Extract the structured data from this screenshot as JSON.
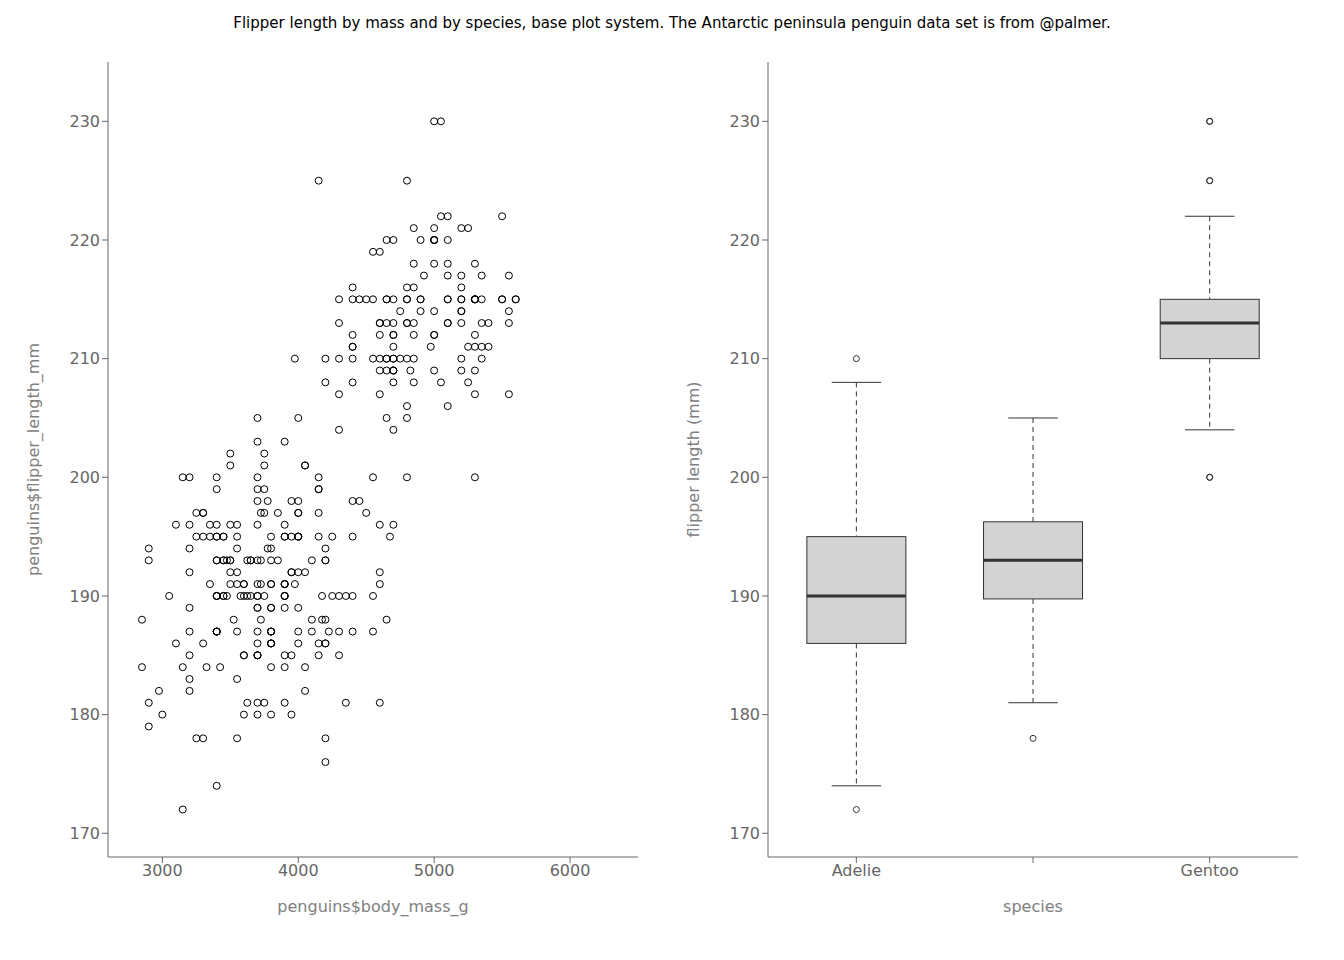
{
  "title": "Flipper length by mass and by species, base plot system. The Antarctic peninsula penguin data set is from @palmer.",
  "chart_data": [
    {
      "type": "scatter",
      "xlabel": "penguins$body_mass_g",
      "ylabel": "penguins$flipper_length_mm",
      "xlim": [
        2600,
        6500
      ],
      "ylim": [
        168,
        235
      ],
      "xticks": [
        3000,
        4000,
        5000,
        6000
      ],
      "yticks": [
        170,
        180,
        190,
        200,
        210,
        220,
        230
      ],
      "color": "#000000",
      "marker": "circle",
      "x": [
        3750,
        3800,
        3250,
        3450,
        3650,
        3625,
        4675,
        3475,
        4250,
        3300,
        3700,
        3200,
        3800,
        4400,
        3700,
        3450,
        4500,
        3325,
        4200,
        3400,
        3600,
        3800,
        3950,
        3800,
        3800,
        3550,
        3200,
        3150,
        3950,
        3550,
        3300,
        4650,
        3150,
        3900,
        3100,
        4400,
        3000,
        4600,
        3425,
        2975,
        3450,
        4150,
        3500,
        4300,
        3450,
        4050,
        2900,
        3700,
        3550,
        3800,
        2850,
        3750,
        3150,
        4400,
        3600,
        3100,
        4100,
        3900,
        3800,
        4150,
        3300,
        3900,
        4050,
        2850,
        3950,
        3350,
        4100,
        3050,
        4450,
        3600,
        3900,
        3550,
        4150,
        3700,
        4250,
        3700,
        3900,
        3550,
        4000,
        3200,
        4700,
        3800,
        4200,
        3350,
        3550,
        3400,
        3800,
        3700,
        4550,
        3500,
        4000,
        3700,
        4000,
        3400,
        4200,
        3400,
        3400,
        4200,
        3200,
        4600,
        3900,
        3200,
        4300,
        3500,
        3800,
        3700,
        4350,
        2900,
        4000,
        3775,
        3900,
        3725,
        3250,
        3725,
        3200,
        3725,
        4150,
        4000,
        3900,
        4100,
        4000,
        4200,
        3750,
        3700,
        3750,
        3900,
        3950,
        3900,
        3975,
        3900,
        3850,
        3650,
        4150,
        4225,
        4175,
        3975,
        3700,
        3600,
        3450,
        3625,
        3700,
        4175,
        3475,
        3950,
        3600,
        3625,
        4050,
        3550,
        3850,
        3400,
        3750,
        3500,
        3900,
        3650,
        3525,
        3725,
        3950,
        3250,
        3750,
        4150,
        3700,
        3800,
        3775,
        3700,
        4050,
        3575,
        4050,
        3300,
        3700,
        3450,
        4400,
        3600,
        3400,
        2900,
        3800,
        3300,
        4150,
        3400,
        3800,
        3700,
        4550,
        3500,
        4000,
        3700,
        4000,
        3400,
        4200,
        3400,
        3400,
        4200,
        3200,
        4600,
        3900,
        3200,
        4300,
        3500,
        3800,
        3700,
        4350,
        2900,
        4000,
        3350,
        3550,
        3400,
        3800,
        3700,
        4550,
        3500,
        4000,
        3700,
        4000,
        3400,
        4200,
        3400,
        3400,
        4200,
        3200,
        4600,
        3900,
        5250,
        5050,
        4200,
        5100,
        4550,
        4750,
        5400,
        4600,
        5300,
        4450,
        5550,
        4400,
        5000,
        5100,
        4650,
        5550,
        4550,
        5250,
        4700,
        5050,
        5000,
        5100,
        4850,
        5200,
        5600,
        4500,
        4850,
        5300,
        4400,
        5000,
        5100,
        4650,
        5550,
        5000,
        5100,
        4650,
        5550,
        4550,
        5250,
        4700,
        5050,
        4800,
        5200,
        5200,
        5500,
        4925,
        4850,
        4150,
        4800,
        5500,
        4700,
        5000,
        4975,
        4300,
        4825,
        5200,
        5200,
        5400,
        4400,
        5500,
        5000,
        4750,
        4600,
        5600,
        4700,
        4650,
        5200,
        4600,
        5350,
        4700,
        4400,
        5000,
        4650,
        5300,
        4850,
        5100,
        4900,
        4800,
        5300,
        4300,
        4800,
        4700,
        5200,
        4600,
        5350,
        4700,
        4400,
        5000,
        4650,
        5300,
        4850,
        5100,
        4900,
        4800,
        5300,
        4300,
        4800,
        4700,
        5200,
        4600,
        5350,
        4700,
        4400,
        5000,
        4650,
        5300,
        4850,
        5100,
        4900,
        4800,
        5300,
        4300,
        4800,
        4700,
        5200,
        4600,
        5350,
        4700,
        4400,
        5000,
        4650,
        5300,
        4850,
        5100,
        4900,
        4800,
        5300,
        4300,
        4800,
        4700,
        5200,
        4600,
        5350,
        4700
      ],
      "values": [
        181,
        186,
        195,
        193,
        190,
        181,
        195,
        193,
        190,
        186,
        180,
        182,
        191,
        198,
        185,
        195,
        197,
        184,
        194,
        174,
        180,
        189,
        185,
        180,
        187,
        183,
        187,
        172,
        180,
        178,
        178,
        188,
        184,
        195,
        196,
        190,
        180,
        181,
        184,
        182,
        195,
        186,
        196,
        185,
        190,
        182,
        179,
        190,
        191,
        186,
        188,
        190,
        200,
        187,
        191,
        186,
        193,
        181,
        194,
        185,
        195,
        185,
        192,
        184,
        192,
        195,
        188,
        190,
        198,
        190,
        190,
        196,
        197,
        190,
        195,
        191,
        184,
        187,
        195,
        189,
        196,
        187,
        193,
        191,
        194,
        190,
        189,
        189,
        190,
        202,
        205,
        185,
        186,
        187,
        208,
        190,
        196,
        178,
        192,
        192,
        203,
        183,
        190,
        193,
        184,
        199,
        190,
        181,
        197,
        198,
        191,
        193,
        197,
        191,
        196,
        188,
        199,
        189,
        189,
        187,
        198,
        176,
        202,
        186,
        199,
        191,
        195,
        191,
        210,
        190,
        197,
        193,
        199,
        187,
        190,
        191,
        200,
        185,
        193,
        193,
        187,
        188,
        190,
        192,
        185,
        190,
        184,
        195,
        193,
        187,
        201,
        192,
        196,
        193,
        188,
        197,
        198,
        178,
        197,
        195,
        198,
        193,
        194,
        185,
        201,
        190,
        201,
        197,
        181,
        190,
        195,
        191,
        187,
        193,
        195,
        197,
        200,
        200,
        191,
        205,
        187,
        201,
        187,
        203,
        195,
        199,
        193,
        193,
        190,
        186,
        194,
        191,
        190,
        200,
        187,
        191,
        186,
        193,
        181,
        194,
        192,
        196,
        192,
        195,
        187,
        196,
        200,
        193,
        197,
        189,
        195,
        187,
        188,
        195,
        193,
        186,
        185,
        196,
        195,
        211,
        230,
        210,
        218,
        215,
        210,
        211,
        219,
        209,
        215,
        214,
        216,
        214,
        213,
        210,
        217,
        210,
        221,
        209,
        222,
        218,
        215,
        213,
        215,
        215,
        215,
        216,
        215,
        210,
        220,
        222,
        209,
        207,
        230,
        220,
        220,
        213,
        219,
        208,
        208,
        208,
        225,
        210,
        216,
        222,
        217,
        210,
        225,
        213,
        215,
        210,
        220,
        211,
        210,
        209,
        221,
        214,
        213,
        208,
        215,
        221,
        214,
        212,
        215,
        209,
        213,
        215,
        213,
        217,
        209,
        211,
        212,
        215,
        215,
        218,
        217,
        215,
        216,
        200,
        204,
        206,
        204,
        209,
        213,
        215,
        211,
        212,
        209,
        205,
        207,
        208,
        206,
        214,
        205,
        212,
        207,
        200,
        210,
        213,
        207,
        210,
        212,
        215,
        220,
        210,
        211,
        212,
        215,
        220,
        210,
        215,
        213,
        215,
        215,
        214,
        210,
        213,
        220,
        211,
        212,
        215,
        218,
        221,
        213,
        215,
        213,
        215,
        215,
        215,
        213,
        217,
        209,
        211,
        212
      ]
    },
    {
      "type": "box",
      "xlabel": "species",
      "ylabel": "flipper length (mm)",
      "categories": [
        "Adelie",
        null,
        "Gentoo"
      ],
      "ylim": [
        168,
        235
      ],
      "yticks": [
        170,
        180,
        190,
        200,
        210,
        220,
        230
      ],
      "color": "#d3d3d3",
      "whisker_low": [
        174,
        181,
        204
      ],
      "q1": [
        186,
        189.75,
        210
      ],
      "median": [
        190,
        193,
        213
      ],
      "q3": [
        195,
        196.25,
        215
      ],
      "whisker_high": [
        208,
        205,
        222
      ],
      "fliers": [
        [
          172,
          210
        ],
        [
          178
        ],
        [
          230,
          230,
          225,
          225,
          200,
          200
        ]
      ]
    }
  ]
}
